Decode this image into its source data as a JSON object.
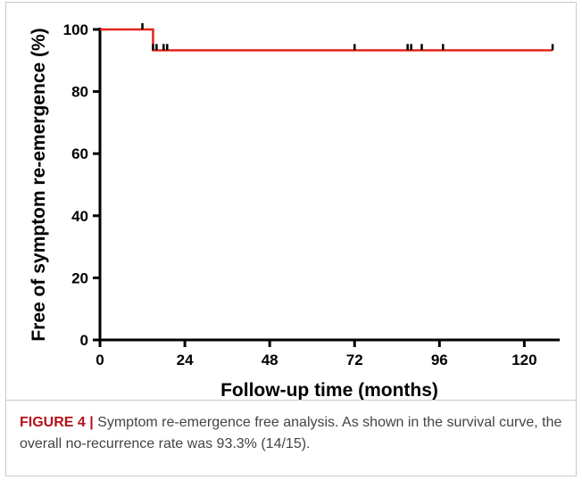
{
  "chart_data": {
    "type": "line",
    "title": "",
    "xlabel": "Follow-up time (months)",
    "ylabel": "Free of symptom re-emergence (%)",
    "xlim": [
      0,
      130
    ],
    "ylim": [
      0,
      100
    ],
    "x_ticks": [
      "0",
      "24",
      "48",
      "72",
      "96",
      "120"
    ],
    "y_ticks": [
      "0",
      "20",
      "40",
      "60",
      "80",
      "100"
    ],
    "grid": false,
    "series": [
      {
        "color": "#e8241c",
        "step_points": [
          [
            0,
            100
          ],
          [
            15,
            100
          ],
          [
            15,
            93.3
          ],
          [
            128,
            93.3
          ]
        ],
        "censored": [
          [
            12,
            100
          ],
          [
            15,
            93.3
          ],
          [
            16,
            93.3
          ],
          [
            18,
            93.3
          ],
          [
            19,
            93.3
          ],
          [
            72,
            93.3
          ],
          [
            87,
            93.3
          ],
          [
            88,
            93.3
          ],
          [
            91,
            93.3
          ],
          [
            97,
            93.3
          ],
          [
            128,
            93.3
          ]
        ]
      }
    ]
  },
  "caption": {
    "label": "FIGURE 4 |",
    "text": " Symptom re-emergence free analysis. As shown in the survival curve, the overall no-recurrence rate was 93.3% (14/15)."
  }
}
